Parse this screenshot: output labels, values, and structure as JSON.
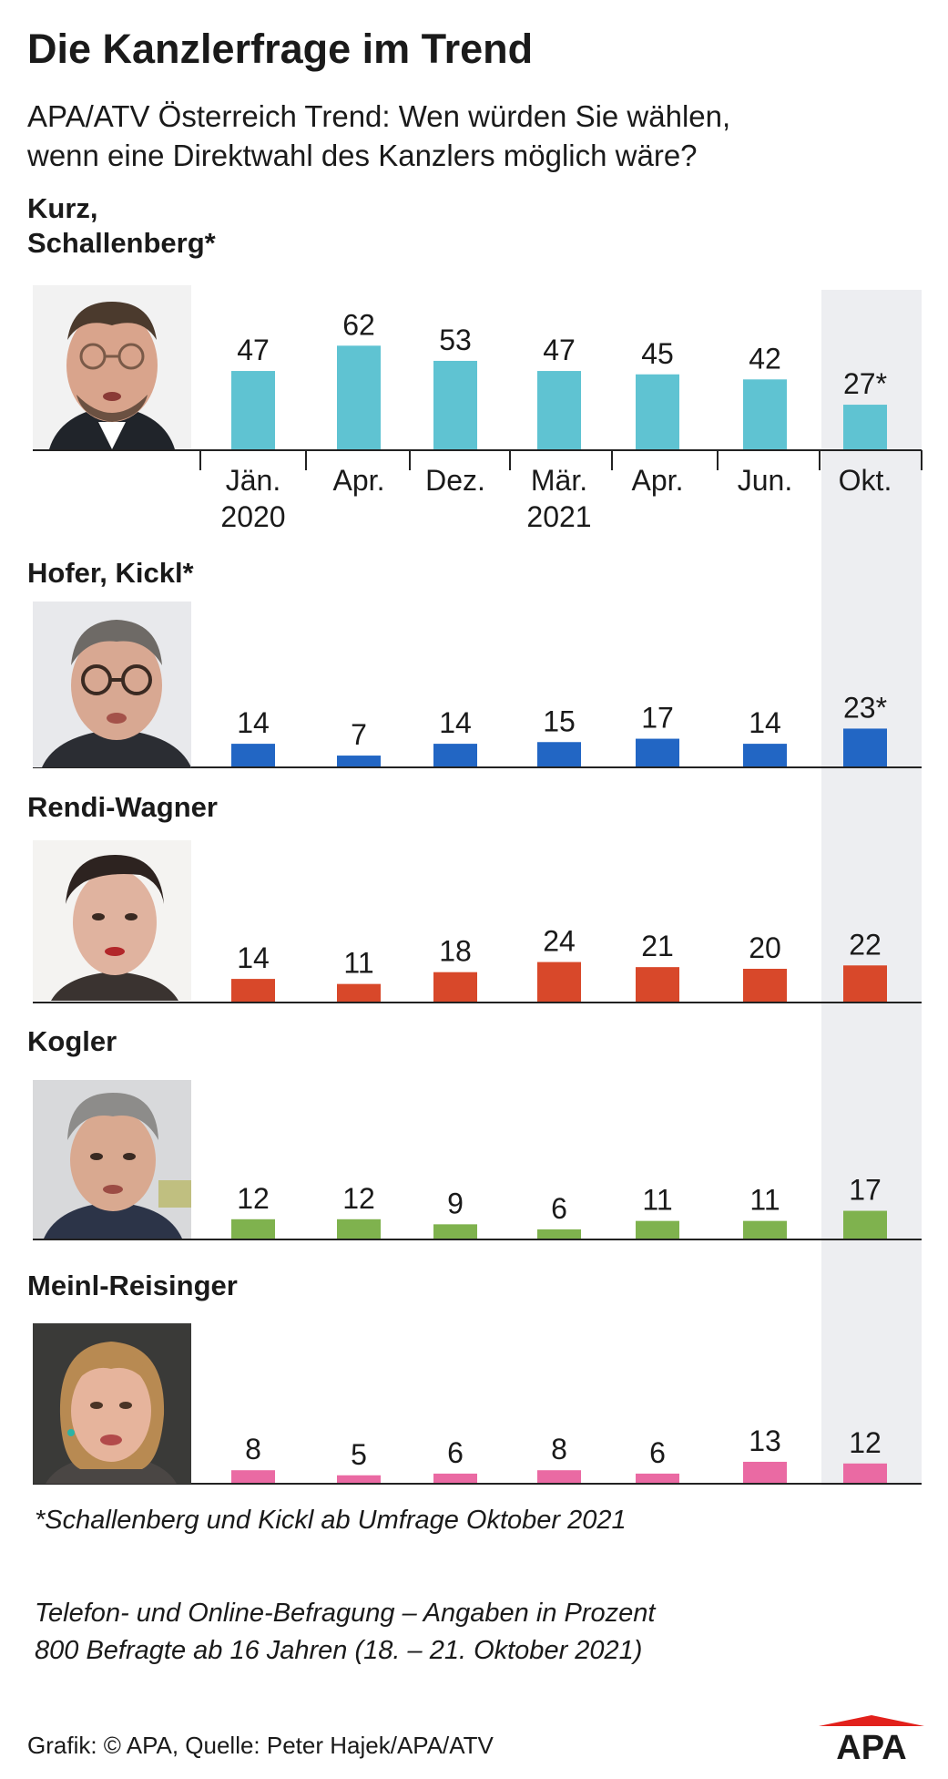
{
  "header": {
    "title": "Die Kanzlerfrage im Trend",
    "subtitle_lines": [
      "APA/ATV Österreich Trend: Wen würden Sie wählen,",
      "wenn eine Direktwahl des Kanzlers möglich wäre?"
    ]
  },
  "persons": [
    {
      "name_lines": [
        "Kurz,",
        "Schallenberg*"
      ],
      "photo": "portrait-man-glasses-beard"
    },
    {
      "name_lines": [
        "Hofer, Kickl*"
      ],
      "photo": "portrait-man-glasses"
    },
    {
      "name_lines": [
        "Rendi-Wagner"
      ],
      "photo": "portrait-woman-dark-hair"
    },
    {
      "name_lines": [
        "Kogler"
      ],
      "photo": "portrait-man-grey-hair"
    },
    {
      "name_lines": [
        "Meinl-Reisinger"
      ],
      "photo": "portrait-woman-blonde"
    }
  ],
  "footer": {
    "note": "*Schallenberg und Kickl ab Umfrage Oktober 2021",
    "method_lines": [
      "Telefon- und Online-Befragung – Angaben in Prozent",
      "800 Befragte ab 16 Jahren (18. – 21. Oktober 2021)"
    ],
    "credit": "Grafik: © APA, Quelle: Peter Hajek/APA/ATV",
    "logo_text": "APA"
  },
  "colors": {
    "highlight_band": "#edeef1",
    "axis": "#222222",
    "logo_red": "#e2211c"
  },
  "chart_data": {
    "type": "bar",
    "categories": [
      {
        "label": [
          "Jän.",
          "2020"
        ]
      },
      {
        "label": [
          "Apr."
        ]
      },
      {
        "label": [
          "Dez."
        ]
      },
      {
        "label": [
          "Mär.",
          "2021"
        ]
      },
      {
        "label": [
          "Apr."
        ]
      },
      {
        "label": [
          "Jun."
        ]
      },
      {
        "label": [
          "Okt."
        ]
      }
    ],
    "highlighted_category": "Okt.",
    "unit": "Prozent",
    "series": [
      {
        "name": "Kurz, Schallenberg*",
        "color": "#5fc3d2",
        "values": [
          47,
          62,
          53,
          47,
          45,
          42,
          27
        ],
        "labels": [
          "47",
          "62",
          "53",
          "47",
          "45",
          "42",
          "27*"
        ]
      },
      {
        "name": "Hofer, Kickl*",
        "color": "#2266c4",
        "values": [
          14,
          7,
          14,
          15,
          17,
          14,
          23
        ],
        "labels": [
          "14",
          "7",
          "14",
          "15",
          "17",
          "14",
          "23*"
        ]
      },
      {
        "name": "Rendi-Wagner",
        "color": "#d8482a",
        "values": [
          14,
          11,
          18,
          24,
          21,
          20,
          22
        ],
        "labels": [
          "14",
          "11",
          "18",
          "24",
          "21",
          "20",
          "22"
        ]
      },
      {
        "name": "Kogler",
        "color": "#7fb24e",
        "values": [
          12,
          12,
          9,
          6,
          11,
          11,
          17
        ],
        "labels": [
          "12",
          "12",
          "9",
          "6",
          "11",
          "11",
          "17"
        ]
      },
      {
        "name": "Meinl-Reisinger",
        "color": "#ea6aa3",
        "values": [
          8,
          5,
          6,
          8,
          6,
          13,
          12
        ],
        "labels": [
          "8",
          "5",
          "6",
          "8",
          "6",
          "13",
          "12"
        ]
      }
    ]
  }
}
